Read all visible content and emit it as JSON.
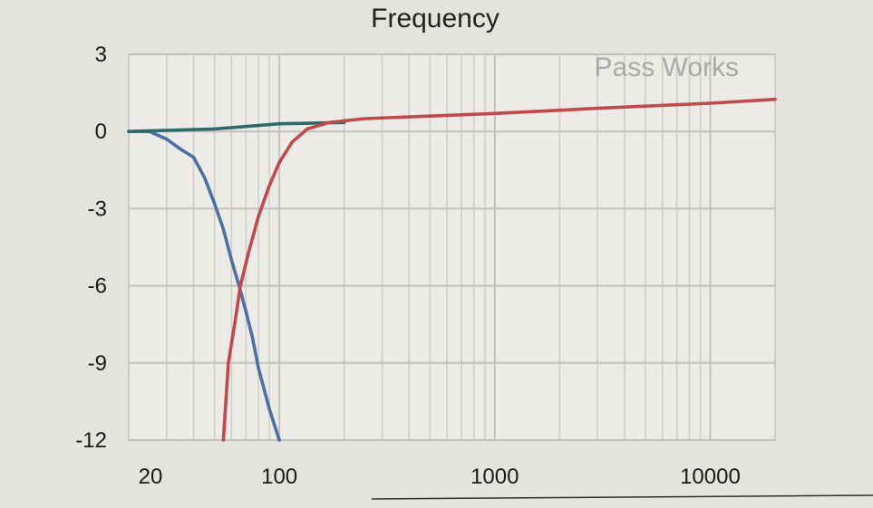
{
  "chart_data": {
    "type": "line",
    "title": "Frequency",
    "xlabel": "",
    "ylabel": "",
    "x_scale": "log",
    "xlim": [
      20,
      20000
    ],
    "ylim": [
      -12,
      3
    ],
    "x_ticks": [
      20,
      100,
      1000,
      10000
    ],
    "x_tick_labels": [
      "20",
      "100",
      "1000",
      "10000"
    ],
    "y_ticks": [
      3,
      0,
      -3,
      -6,
      -9,
      -12
    ],
    "y_tick_labels": [
      "3",
      "0",
      "-3",
      "-6",
      "-9",
      "-12"
    ],
    "grid": true,
    "annotation": "Pass Works",
    "series": [
      {
        "color": "#4e6fa3",
        "points": [
          [
            20,
            0
          ],
          [
            25,
            0
          ],
          [
            30,
            -0.3
          ],
          [
            35,
            -0.7
          ],
          [
            40,
            -1.0
          ],
          [
            45,
            -1.8
          ],
          [
            50,
            -2.8
          ],
          [
            55,
            -3.8
          ],
          [
            60,
            -5.0
          ],
          [
            65,
            -6.0
          ],
          [
            70,
            -7.0
          ],
          [
            75,
            -8.0
          ],
          [
            80,
            -9.2
          ],
          [
            90,
            -10.8
          ],
          [
            100,
            -12
          ]
        ]
      },
      {
        "color": "#2f6a6a",
        "points": [
          [
            20,
            0
          ],
          [
            50,
            0.1
          ],
          [
            100,
            0.3
          ],
          [
            200,
            0.35
          ]
        ]
      },
      {
        "color": "#c0494c",
        "points": [
          [
            55,
            -12
          ],
          [
            58,
            -9
          ],
          [
            62,
            -7.5
          ],
          [
            66,
            -6.0
          ],
          [
            72,
            -4.7
          ],
          [
            80,
            -3.3
          ],
          [
            90,
            -2.1
          ],
          [
            100,
            -1.2
          ],
          [
            115,
            -0.4
          ],
          [
            135,
            0.1
          ],
          [
            170,
            0.35
          ],
          [
            250,
            0.5
          ],
          [
            500,
            0.6
          ],
          [
            1000,
            0.7
          ],
          [
            3000,
            0.9
          ],
          [
            10000,
            1.1
          ],
          [
            20000,
            1.25
          ]
        ]
      }
    ]
  }
}
